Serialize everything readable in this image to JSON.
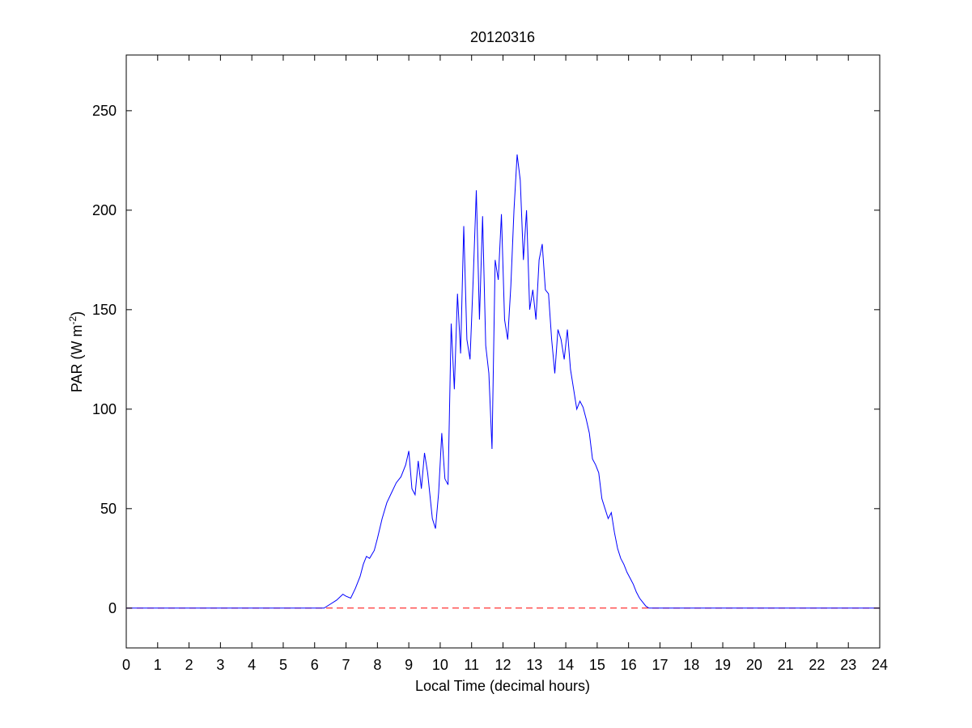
{
  "chart_data": {
    "type": "line",
    "title": "20120316",
    "xlabel": "Local Time (decimal hours)",
    "ylabel": {
      "main": "PAR (W m",
      "sup": "-2",
      "close": ")"
    },
    "xlim": [
      0,
      24
    ],
    "ylim": [
      -20,
      278
    ],
    "xticks": [
      0,
      1,
      2,
      3,
      4,
      5,
      6,
      7,
      8,
      9,
      10,
      11,
      12,
      13,
      14,
      15,
      16,
      17,
      18,
      19,
      20,
      21,
      22,
      23,
      24
    ],
    "yticks": [
      0,
      50,
      100,
      150,
      200,
      250
    ],
    "grid": false,
    "colors": {
      "par": "#0000ff",
      "zero_line": "#ff0000",
      "axes": "#000000"
    },
    "series": [
      {
        "type": "line",
        "x": [
          0,
          6.3,
          6.5,
          6.7,
          6.9,
          7.0,
          7.15,
          7.3,
          7.45,
          7.55,
          7.65,
          7.75,
          7.9,
          8.0,
          8.15,
          8.3,
          8.45,
          8.6,
          8.75,
          8.9,
          9.0,
          9.1,
          9.2,
          9.3,
          9.4,
          9.5,
          9.6,
          9.75,
          9.85,
          9.95,
          10.05,
          10.15,
          10.25,
          10.35,
          10.45,
          10.55,
          10.65,
          10.75,
          10.85,
          10.95,
          11.05,
          11.15,
          11.25,
          11.35,
          11.45,
          11.55,
          11.65,
          11.75,
          11.85,
          11.95,
          12.05,
          12.15,
          12.25,
          12.35,
          12.45,
          12.55,
          12.65,
          12.75,
          12.85,
          12.95,
          13.05,
          13.15,
          13.25,
          13.35,
          13.45,
          13.55,
          13.65,
          13.75,
          13.85,
          13.95,
          14.05,
          14.15,
          14.25,
          14.35,
          14.45,
          14.55,
          14.65,
          14.75,
          14.85,
          14.95,
          15.05,
          15.15,
          15.25,
          15.35,
          15.45,
          15.55,
          15.65,
          15.75,
          15.85,
          15.95,
          16.05,
          16.15,
          16.25,
          16.35,
          16.45,
          16.55,
          16.65,
          16.75,
          16.85,
          16.95,
          17.1,
          17.25,
          17.4,
          17.55,
          17.7,
          17.85,
          18.0,
          18.15,
          18.3,
          18.45,
          24
        ],
        "y": [
          0,
          0,
          2,
          4,
          7,
          6,
          5,
          10,
          16,
          22,
          26,
          25,
          29,
          35,
          45,
          53,
          58,
          63,
          66,
          72,
          79,
          60,
          57,
          74,
          60,
          78,
          68,
          45,
          40,
          58,
          88,
          65,
          62,
          143,
          110,
          158,
          128,
          192,
          135,
          125,
          165,
          210,
          145,
          197,
          132,
          118,
          80,
          175,
          165,
          198,
          145,
          135,
          162,
          200,
          228,
          215,
          175,
          200,
          150,
          160,
          145,
          175,
          183,
          160,
          158,
          135,
          118,
          140,
          135,
          125,
          140,
          120,
          110,
          100,
          104,
          101,
          95,
          88,
          75,
          72,
          68,
          55,
          50,
          45,
          48,
          38,
          30,
          25,
          22,
          18,
          15,
          12,
          8,
          5,
          3,
          1,
          0,
          0,
          0,
          0,
          0,
          0,
          0,
          0,
          0,
          0,
          0,
          0,
          0,
          0,
          0
        ]
      },
      {
        "type": "dashed",
        "y": 0
      }
    ]
  }
}
